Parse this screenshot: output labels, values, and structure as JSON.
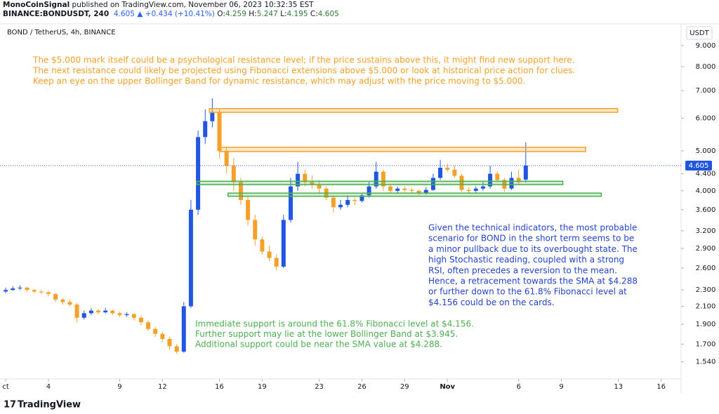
{
  "header": {
    "publisher": "MonoCoinSignal",
    "published": "published on TradingView.com, November 06, 2023 10:32:35 EST",
    "symbol": "BINANCE:BONDUSDT, 240",
    "last": "4.605",
    "change": "▲ +0.434 (+10.41%)",
    "ohlc": [
      [
        "O:",
        "4.259"
      ],
      [
        "H:",
        "5.247"
      ],
      [
        "L:",
        "4.195"
      ],
      [
        "C:",
        "4.605"
      ]
    ]
  },
  "footer": {
    "brand": "TradingView"
  },
  "chart_data": {
    "type": "candlestick",
    "title": "BOND / TetherUS, 4h, BINANCE",
    "currency": "USDT",
    "log_scale": true,
    "up_color": "#2157e0",
    "down_color": "#f5a028",
    "xlim": [
      -0.4,
      47.4
    ],
    "ylim": [
      1.4,
      10.0
    ],
    "xticks": [
      {
        "value": 0,
        "label": "ct"
      },
      {
        "value": 3,
        "label": "4"
      },
      {
        "value": 8,
        "label": "9"
      },
      {
        "value": 11,
        "label": "12"
      },
      {
        "value": 15,
        "label": "16"
      },
      {
        "value": 18,
        "label": "19"
      },
      {
        "value": 22,
        "label": "23"
      },
      {
        "value": 25,
        "label": "26"
      },
      {
        "value": 28,
        "label": "29"
      },
      {
        "value": 31,
        "label": "Nov"
      },
      {
        "value": 36,
        "label": "6"
      },
      {
        "value": 39,
        "label": "9"
      },
      {
        "value": 43,
        "label": "13"
      },
      {
        "value": 46,
        "label": "16"
      }
    ],
    "yticks": [
      {
        "value": 9,
        "label": "9.000"
      },
      {
        "value": 8,
        "label": "8.000"
      },
      {
        "value": 7,
        "label": "7.000"
      },
      {
        "value": 6,
        "label": "6.000"
      },
      {
        "value": 5,
        "label": "5.000"
      },
      {
        "value": 4.4,
        "label": "4.400"
      },
      {
        "value": 4,
        "label": "4.000"
      },
      {
        "value": 3.6,
        "label": "3.600"
      },
      {
        "value": 3.2,
        "label": "3.200"
      },
      {
        "value": 2.9,
        "label": "2.900"
      },
      {
        "value": 2.6,
        "label": "2.600"
      },
      {
        "value": 2.3,
        "label": "2.300"
      },
      {
        "value": 2.1,
        "label": "2.100"
      },
      {
        "value": 1.9,
        "label": "1.900"
      },
      {
        "value": 1.7,
        "label": "1.700"
      },
      {
        "value": 1.54,
        "label": "1.540"
      }
    ],
    "last_price": 4.605,
    "candles": [
      [
        0,
        2.28,
        2.33,
        2.26,
        2.3
      ],
      [
        0.5,
        2.3,
        2.35,
        2.29,
        2.32
      ],
      [
        1,
        2.32,
        2.36,
        2.3,
        2.33
      ],
      [
        1.5,
        2.33,
        2.34,
        2.28,
        2.3
      ],
      [
        2,
        2.3,
        2.31,
        2.26,
        2.28
      ],
      [
        2.5,
        2.28,
        2.3,
        2.25,
        2.27
      ],
      [
        3,
        2.27,
        2.29,
        2.22,
        2.25
      ],
      [
        3.5,
        2.25,
        2.26,
        2.15,
        2.18
      ],
      [
        4,
        2.18,
        2.2,
        2.12,
        2.15
      ],
      [
        4.5,
        2.15,
        2.18,
        2.1,
        2.12
      ],
      [
        5,
        2.12,
        2.14,
        1.92,
        1.97
      ],
      [
        5.5,
        1.97,
        2.05,
        1.95,
        2.02
      ],
      [
        6,
        2.02,
        2.08,
        2.0,
        2.05
      ],
      [
        6.5,
        2.05,
        2.07,
        2.01,
        2.03
      ],
      [
        7,
        2.03,
        2.08,
        2.02,
        2.05
      ],
      [
        7.5,
        2.05,
        2.06,
        2.0,
        2.02
      ],
      [
        8,
        2.02,
        2.04,
        1.98,
        2.0
      ],
      [
        8.5,
        2.0,
        2.03,
        1.98,
        2.01
      ],
      [
        9,
        2.01,
        2.02,
        1.94,
        1.97
      ],
      [
        9.5,
        1.97,
        1.99,
        1.89,
        1.92
      ],
      [
        10,
        1.92,
        1.94,
        1.83,
        1.85
      ],
      [
        10.5,
        1.85,
        1.87,
        1.77,
        1.8
      ],
      [
        11,
        1.8,
        1.82,
        1.72,
        1.75
      ],
      [
        11.5,
        1.75,
        1.77,
        1.65,
        1.68
      ],
      [
        12,
        1.68,
        1.7,
        1.61,
        1.63
      ],
      [
        12.5,
        1.63,
        2.15,
        1.62,
        2.1
      ],
      [
        13,
        2.1,
        3.8,
        2.08,
        3.6
      ],
      [
        13.5,
        3.6,
        5.6,
        3.5,
        5.4
      ],
      [
        14,
        5.4,
        6.3,
        5.2,
        5.9
      ],
      [
        14.5,
        5.9,
        6.7,
        5.7,
        6.2
      ],
      [
        15,
        6.2,
        6.3,
        4.8,
        5.0
      ],
      [
        15.5,
        5.0,
        5.1,
        4.4,
        4.6
      ],
      [
        16,
        4.6,
        4.8,
        4.0,
        4.2
      ],
      [
        16.5,
        4.2,
        4.3,
        3.7,
        3.8
      ],
      [
        17,
        3.8,
        3.9,
        3.3,
        3.4
      ],
      [
        17.5,
        3.4,
        3.5,
        2.95,
        3.05
      ],
      [
        18,
        3.05,
        3.1,
        2.8,
        2.85
      ],
      [
        18.5,
        2.85,
        2.95,
        2.7,
        2.75
      ],
      [
        19,
        2.75,
        2.8,
        2.57,
        2.62
      ],
      [
        19.5,
        2.62,
        3.5,
        2.6,
        3.4
      ],
      [
        20,
        3.4,
        4.3,
        3.35,
        4.1
      ],
      [
        20.5,
        4.1,
        4.7,
        4.0,
        4.4
      ],
      [
        21,
        4.4,
        4.5,
        4.1,
        4.2
      ],
      [
        21.5,
        4.2,
        4.35,
        4.05,
        4.15
      ],
      [
        22,
        4.15,
        4.25,
        3.95,
        4.05
      ],
      [
        22.5,
        4.05,
        4.1,
        3.8,
        3.85
      ],
      [
        23,
        3.85,
        3.9,
        3.55,
        3.65
      ],
      [
        23.5,
        3.65,
        3.8,
        3.6,
        3.7
      ],
      [
        24,
        3.7,
        3.9,
        3.65,
        3.8
      ],
      [
        24.5,
        3.8,
        3.85,
        3.7,
        3.78
      ],
      [
        25,
        3.78,
        3.95,
        3.75,
        3.9
      ],
      [
        25.5,
        3.9,
        4.2,
        3.85,
        4.1
      ],
      [
        26,
        4.1,
        4.7,
        4.05,
        4.45
      ],
      [
        26.5,
        4.45,
        4.5,
        4.0,
        4.1
      ],
      [
        27,
        4.1,
        4.15,
        3.95,
        4.0
      ],
      [
        27.5,
        4.0,
        4.1,
        3.95,
        4.05
      ],
      [
        28,
        4.05,
        4.1,
        3.97,
        4.02
      ],
      [
        28.5,
        4.02,
        4.06,
        3.96,
        4.0
      ],
      [
        29,
        4.0,
        4.03,
        3.9,
        3.95
      ],
      [
        29.5,
        3.95,
        4.08,
        3.92,
        4.02
      ],
      [
        30,
        4.02,
        4.4,
        4.0,
        4.3
      ],
      [
        30.5,
        4.3,
        4.75,
        4.25,
        4.55
      ],
      [
        31,
        4.55,
        4.65,
        4.45,
        4.5
      ],
      [
        31.5,
        4.5,
        4.6,
        4.3,
        4.35
      ],
      [
        32,
        4.35,
        4.4,
        3.98,
        4.02
      ],
      [
        32.5,
        4.02,
        4.08,
        3.95,
        4.0
      ],
      [
        33,
        4.0,
        4.1,
        3.96,
        4.05
      ],
      [
        33.5,
        4.05,
        4.2,
        4.0,
        4.1
      ],
      [
        34,
        4.1,
        4.6,
        4.05,
        4.4
      ],
      [
        34.5,
        4.4,
        4.45,
        4.2,
        4.25
      ],
      [
        35,
        4.25,
        4.3,
        3.98,
        4.05
      ],
      [
        35.5,
        4.05,
        4.45,
        4.02,
        4.3
      ],
      [
        36,
        4.3,
        4.5,
        4.15,
        4.2
      ],
      [
        36.5,
        4.259,
        5.247,
        4.195,
        4.605
      ]
    ],
    "zones": [
      {
        "x": [
          14.3,
          42.95
        ],
        "y": [
          6.2,
          6.33
        ],
        "color": "#f5a028"
      },
      {
        "x": [
          15,
          40.7
        ],
        "y": [
          4.98,
          5.1
        ],
        "color": "#f5a028"
      },
      {
        "x": [
          13.4,
          39.1
        ],
        "y": [
          4.14,
          4.22
        ],
        "color": "#4caf50"
      },
      {
        "x": [
          15.6,
          41.8
        ],
        "y": [
          3.88,
          3.95
        ],
        "color": "#4caf50"
      }
    ],
    "annotations": [
      {
        "color": "#f5a028",
        "lines": [
          "The $5.000 mark itself could be a psychological resistance level; if the price sustains above this, it might find new support here.",
          "The next resistance could likely be projected using Fibonacci extensions above $5.000 or look at historical price action for clues.",
          "Keep an eye on the upper Bollinger Band for dynamic resistance, which may adjust with the price moving to $5.000."
        ]
      },
      {
        "color": "#2444c8",
        "lines": [
          "Given the technical indicators, the most probable",
          "scenario for BOND in the short term seems to be",
          "a minor pullback due to its overbought state. The",
          "high Stochastic reading, coupled with a strong",
          "RSI, often precedes a reversion to the mean.",
          "Hence, a retracement towards the SMA at $4.288",
          "or further down to the 61.8% Fibonacci level at",
          "$4.156 could be on the cards."
        ]
      },
      {
        "color": "#4caf50",
        "lines": [
          "Immediate support is around the 61.8% Fibonacci level at $4.156.",
          "Further support may lie at the lower Bollinger Band at $3.945.",
          "Additional support could be near the SMA value at $4.288."
        ]
      }
    ]
  }
}
